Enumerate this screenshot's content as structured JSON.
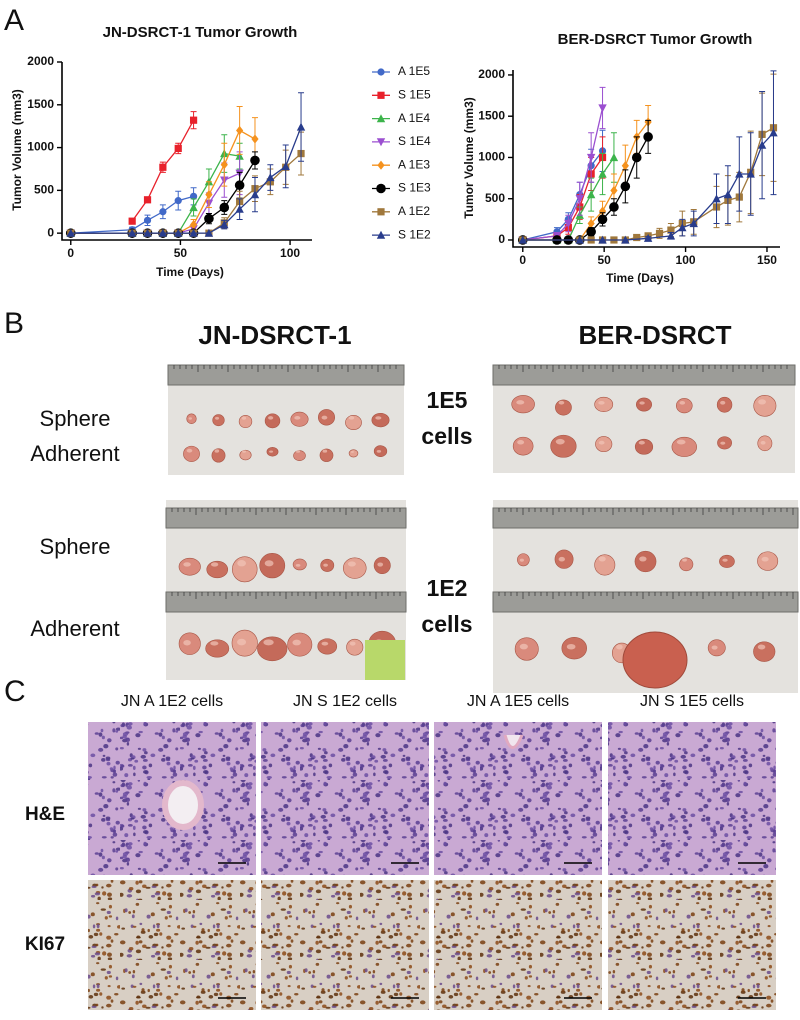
{
  "figure_labels": [
    "A",
    "B",
    "C"
  ],
  "chart_data": [
    {
      "type": "line",
      "title": "JN-DSRCT-1 Tumor Growth",
      "x_label": "Time (Days)",
      "y_label": "Tumor Volume (mm3)",
      "xlim": [
        -4,
        110
      ],
      "xticks": [
        0,
        50,
        100
      ],
      "ylim": [
        -80,
        2000
      ],
      "yticks": [
        0,
        500,
        1000,
        1500,
        2000
      ],
      "legend": "right",
      "series": [
        {
          "name": "A 1E5",
          "color": "#4169c8",
          "marker": "circle",
          "x": [
            0,
            28,
            35,
            42,
            49,
            56
          ],
          "values": [
            0,
            40,
            150,
            250,
            380,
            430
          ],
          "errors": [
            0,
            30,
            60,
            80,
            110,
            100
          ]
        },
        {
          "name": "S 1E5",
          "color": "#e8212b",
          "marker": "square",
          "x": [
            28,
            35,
            42,
            49,
            56
          ],
          "values": [
            140,
            390,
            770,
            990,
            1320
          ],
          "errors": [
            20,
            30,
            60,
            60,
            100
          ]
        },
        {
          "name": "A 1E4",
          "color": "#3cb44b",
          "marker": "triangle",
          "x": [
            0,
            28,
            35,
            42,
            49,
            56,
            63,
            70,
            77
          ],
          "values": [
            0,
            0,
            0,
            0,
            0,
            300,
            600,
            930,
            900
          ],
          "errors": [
            0,
            0,
            0,
            0,
            0,
            100,
            150,
            220,
            150
          ]
        },
        {
          "name": "S 1E4",
          "color": "#9b4fd0",
          "marker": "triangle-down",
          "x": [
            0,
            28,
            35,
            42,
            49,
            56,
            63,
            70,
            77
          ],
          "values": [
            0,
            0,
            0,
            0,
            0,
            50,
            350,
            620,
            700
          ],
          "errors": [
            0,
            0,
            0,
            0,
            0,
            40,
            120,
            200,
            250
          ]
        },
        {
          "name": "A 1E3",
          "color": "#f5921e",
          "marker": "diamond",
          "x": [
            0,
            28,
            35,
            42,
            49,
            56,
            63,
            70,
            77,
            84
          ],
          "values": [
            0,
            0,
            0,
            0,
            0,
            100,
            450,
            800,
            1200,
            1100
          ],
          "errors": [
            0,
            0,
            0,
            0,
            0,
            60,
            150,
            250,
            280,
            250
          ]
        },
        {
          "name": "S 1E3",
          "color": "#000000",
          "marker": "circle-big",
          "x": [
            0,
            28,
            35,
            42,
            49,
            56,
            63,
            70,
            77,
            84
          ],
          "values": [
            0,
            0,
            0,
            0,
            0,
            0,
            170,
            300,
            560,
            850
          ],
          "errors": [
            0,
            0,
            0,
            0,
            0,
            0,
            60,
            80,
            150,
            100
          ]
        },
        {
          "name": "A 1E2",
          "color": "#a0783c",
          "marker": "square",
          "x": [
            0,
            28,
            35,
            42,
            49,
            56,
            63,
            70,
            77,
            84,
            91,
            98,
            105
          ],
          "values": [
            0,
            0,
            0,
            0,
            0,
            0,
            0,
            120,
            370,
            520,
            600,
            770,
            930
          ],
          "errors": [
            0,
            0,
            0,
            0,
            0,
            0,
            0,
            60,
            120,
            150,
            150,
            200,
            250
          ]
        },
        {
          "name": "S 1E2",
          "color": "#283c8c",
          "marker": "triangle",
          "x": [
            0,
            28,
            35,
            42,
            49,
            56,
            63,
            70,
            77,
            84,
            91,
            98,
            105
          ],
          "values": [
            0,
            0,
            0,
            0,
            0,
            0,
            0,
            100,
            280,
            450,
            650,
            780,
            1240
          ],
          "errors": [
            0,
            0,
            0,
            0,
            0,
            0,
            0,
            50,
            120,
            200,
            150,
            250,
            400
          ]
        }
      ]
    },
    {
      "type": "line",
      "title": "BER-DSRCT Tumor Growth",
      "x_label": "Time (Days)",
      "y_label": "Tumor Volume (mm3)",
      "xlim": [
        -6,
        158
      ],
      "xticks": [
        0,
        50,
        100,
        150
      ],
      "ylim": [
        -85,
        2060
      ],
      "yticks": [
        0,
        500,
        1000,
        1500,
        2000
      ],
      "series": [
        {
          "color": "#4169c8",
          "marker": "circle",
          "x": [
            0,
            21,
            28,
            35,
            42,
            49
          ],
          "values": [
            0,
            100,
            250,
            550,
            900,
            1080
          ],
          "errors": [
            0,
            50,
            80,
            150,
            200,
            250
          ]
        },
        {
          "color": "#e8212b",
          "marker": "square",
          "x": [
            0,
            21,
            28,
            35,
            42,
            49
          ],
          "values": [
            0,
            50,
            150,
            400,
            800,
            1000
          ],
          "errors": [
            0,
            40,
            80,
            150,
            200,
            250
          ]
        },
        {
          "color": "#3cb44b",
          "marker": "triangle",
          "x": [
            0,
            21,
            28,
            35,
            42,
            49,
            56
          ],
          "values": [
            0,
            0,
            0,
            300,
            550,
            800,
            1000
          ],
          "errors": [
            0,
            0,
            0,
            100,
            200,
            250,
            300
          ]
        },
        {
          "color": "#9b4fd0",
          "marker": "triangle-down",
          "x": [
            0,
            21,
            28,
            35,
            42,
            49
          ],
          "values": [
            0,
            50,
            200,
            500,
            1000,
            1600
          ],
          "errors": [
            0,
            40,
            100,
            200,
            300,
            250
          ]
        },
        {
          "color": "#f5921e",
          "marker": "diamond",
          "x": [
            0,
            21,
            28,
            35,
            42,
            49,
            56,
            63,
            70,
            77
          ],
          "values": [
            0,
            0,
            0,
            0,
            200,
            350,
            600,
            900,
            1250,
            1430
          ],
          "errors": [
            0,
            0,
            0,
            0,
            80,
            120,
            200,
            250,
            200,
            200
          ]
        },
        {
          "color": "#000000",
          "marker": "circle-big",
          "x": [
            0,
            21,
            28,
            35,
            42,
            49,
            56,
            63,
            70,
            77
          ],
          "values": [
            0,
            0,
            0,
            0,
            100,
            250,
            400,
            650,
            1000,
            1250
          ],
          "errors": [
            0,
            0,
            0,
            0,
            50,
            80,
            100,
            200,
            250,
            200
          ]
        },
        {
          "color": "#a0783c",
          "marker": "square",
          "x": [
            0,
            35,
            42,
            49,
            56,
            63,
            70,
            77,
            84,
            91,
            98,
            105,
            119,
            126,
            133,
            140,
            147,
            154
          ],
          "values": [
            0,
            0,
            0,
            0,
            0,
            0,
            30,
            50,
            80,
            120,
            200,
            220,
            400,
            480,
            520,
            820,
            1280,
            1360
          ],
          "errors": [
            0,
            0,
            0,
            0,
            0,
            0,
            20,
            30,
            60,
            80,
            150,
            150,
            250,
            300,
            300,
            500,
            500,
            650
          ]
        },
        {
          "color": "#283c8c",
          "marker": "triangle",
          "x": [
            0,
            35,
            49,
            63,
            77,
            91,
            98,
            105,
            119,
            126,
            133,
            140,
            147,
            154
          ],
          "values": [
            0,
            0,
            0,
            0,
            20,
            50,
            150,
            200,
            500,
            550,
            800,
            800,
            1150,
            1300
          ],
          "errors": [
            0,
            0,
            0,
            0,
            20,
            40,
            100,
            150,
            300,
            350,
            450,
            500,
            650,
            750
          ]
        }
      ]
    }
  ],
  "panel_b": {
    "columns": [
      "JN-DSRCT-1",
      "BER-DSRCT"
    ],
    "groups": [
      {
        "rows": [
          "Sphere",
          "Adherent"
        ],
        "label": [
          "1E5",
          "cells"
        ]
      },
      {
        "rows": [
          "Sphere",
          "Adherent"
        ],
        "label": [
          "1E2",
          "cells"
        ]
      }
    ]
  },
  "panel_c": {
    "columns": [
      "JN A 1E2 cells",
      "JN S 1E2 cells",
      "JN A 1E5 cells",
      "JN S 1E5 cells"
    ],
    "rows": [
      "H&E",
      "KI67"
    ]
  }
}
